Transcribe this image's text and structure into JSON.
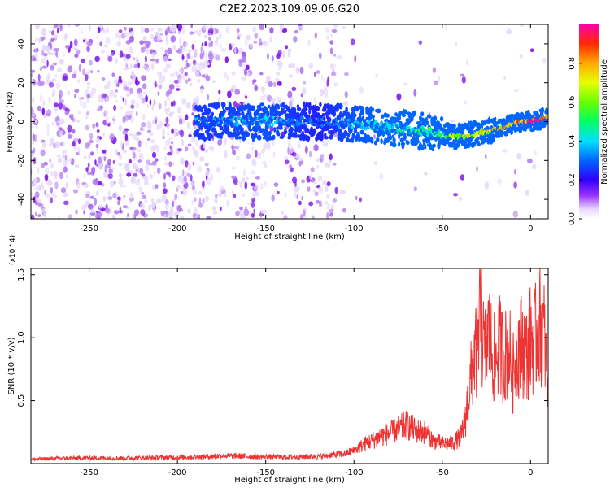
{
  "title": "C2E2.2023.109.09.06.G20",
  "colorbar": {
    "label": "Normalized spectral amplitude",
    "ticks": [
      "0.0",
      "0.2",
      "0.4",
      "0.6",
      "0.8"
    ],
    "tick_values": [
      0.0,
      0.2,
      0.4,
      0.6,
      0.8
    ],
    "range": [
      0,
      1
    ]
  },
  "colors": {
    "line": "#ee3333",
    "spectrum_faint": "#e6d8fb",
    "spectrum_mid": "#b27cf2",
    "spectrum_strong": "#7a12e8"
  },
  "chart_data": [
    {
      "type": "heatmap",
      "title": "C2E2.2023.109.09.06.G20",
      "xlabel": "Height of straight line (km)",
      "ylabel": "Frequency (Hz)",
      "xlim": [
        -283,
        10
      ],
      "ylim": [
        -50,
        50
      ],
      "xticks": [
        -250,
        -200,
        -150,
        -100,
        -50,
        0
      ],
      "xtick_labels": [
        "-250",
        "-200",
        "-150",
        "-100",
        "-50",
        "0"
      ],
      "yticks": [
        -40,
        -20,
        0,
        20,
        40
      ],
      "ytick_labels": [
        "-40",
        "-20",
        "0",
        "20",
        "40"
      ],
      "color_scale": "Normalized spectral amplitude",
      "ridge": {
        "description_points_x": [
          -185,
          -150,
          -120,
          -100,
          -80,
          -60,
          -48,
          -42,
          -35,
          -25,
          -15,
          -10,
          -5,
          0,
          5,
          10
        ],
        "description_points_y": [
          0,
          0,
          0,
          -1,
          -3,
          -5,
          -7,
          -8,
          -7,
          -5,
          -3,
          -1,
          0,
          0,
          1,
          3
        ],
        "peak_amplitude": [
          0.35,
          0.4,
          0.3,
          0.4,
          0.45,
          0.5,
          0.55,
          0.7,
          0.7,
          0.75,
          0.85,
          0.9,
          0.95,
          1.0,
          0.95,
          0.9
        ]
      }
    },
    {
      "type": "line",
      "xlabel": "Height of straight line (km)",
      "ylabel": "SNR (10 * v/v)",
      "y_multiplier": "(x10^4)",
      "xlim": [
        -283,
        10
      ],
      "ylim": [
        0,
        15500
      ],
      "xticks": [
        -250,
        -200,
        -150,
        -100,
        -50,
        0
      ],
      "xtick_labels": [
        "-250",
        "-200",
        "-150",
        "-100",
        "-50",
        "0"
      ],
      "yticks": [
        5000,
        10000,
        15000
      ],
      "ytick_labels": [
        "0.5",
        "1.0",
        "1.5"
      ],
      "series": [
        {
          "x": [
            -283,
            -270,
            -250,
            -230,
            -210,
            -190,
            -175,
            -160,
            -140,
            -120,
            -105,
            -100,
            -95,
            -90,
            -85,
            -80,
            -75,
            -70,
            -65,
            -60,
            -55,
            -50,
            -45,
            -40,
            -37,
            -34,
            -32,
            -30,
            -28,
            -26,
            -24,
            -22,
            -20,
            -18,
            -15,
            -12,
            -10,
            -8,
            -5,
            -2,
            0,
            2,
            4,
            6,
            8,
            10
          ],
          "values": [
            300,
            350,
            400,
            380,
            420,
            450,
            550,
            500,
            450,
            500,
            700,
            900,
            1300,
            1600,
            1900,
            2100,
            2400,
            2700,
            2300,
            2200,
            1600,
            1400,
            1400,
            1800,
            3500,
            6500,
            8500,
            9000,
            11000,
            8500,
            10500,
            9000,
            8000,
            9500,
            8500,
            9000,
            7000,
            9000,
            9500,
            8500,
            10000,
            9500,
            10500,
            11000,
            10000,
            5000
          ]
        }
      ]
    }
  ]
}
